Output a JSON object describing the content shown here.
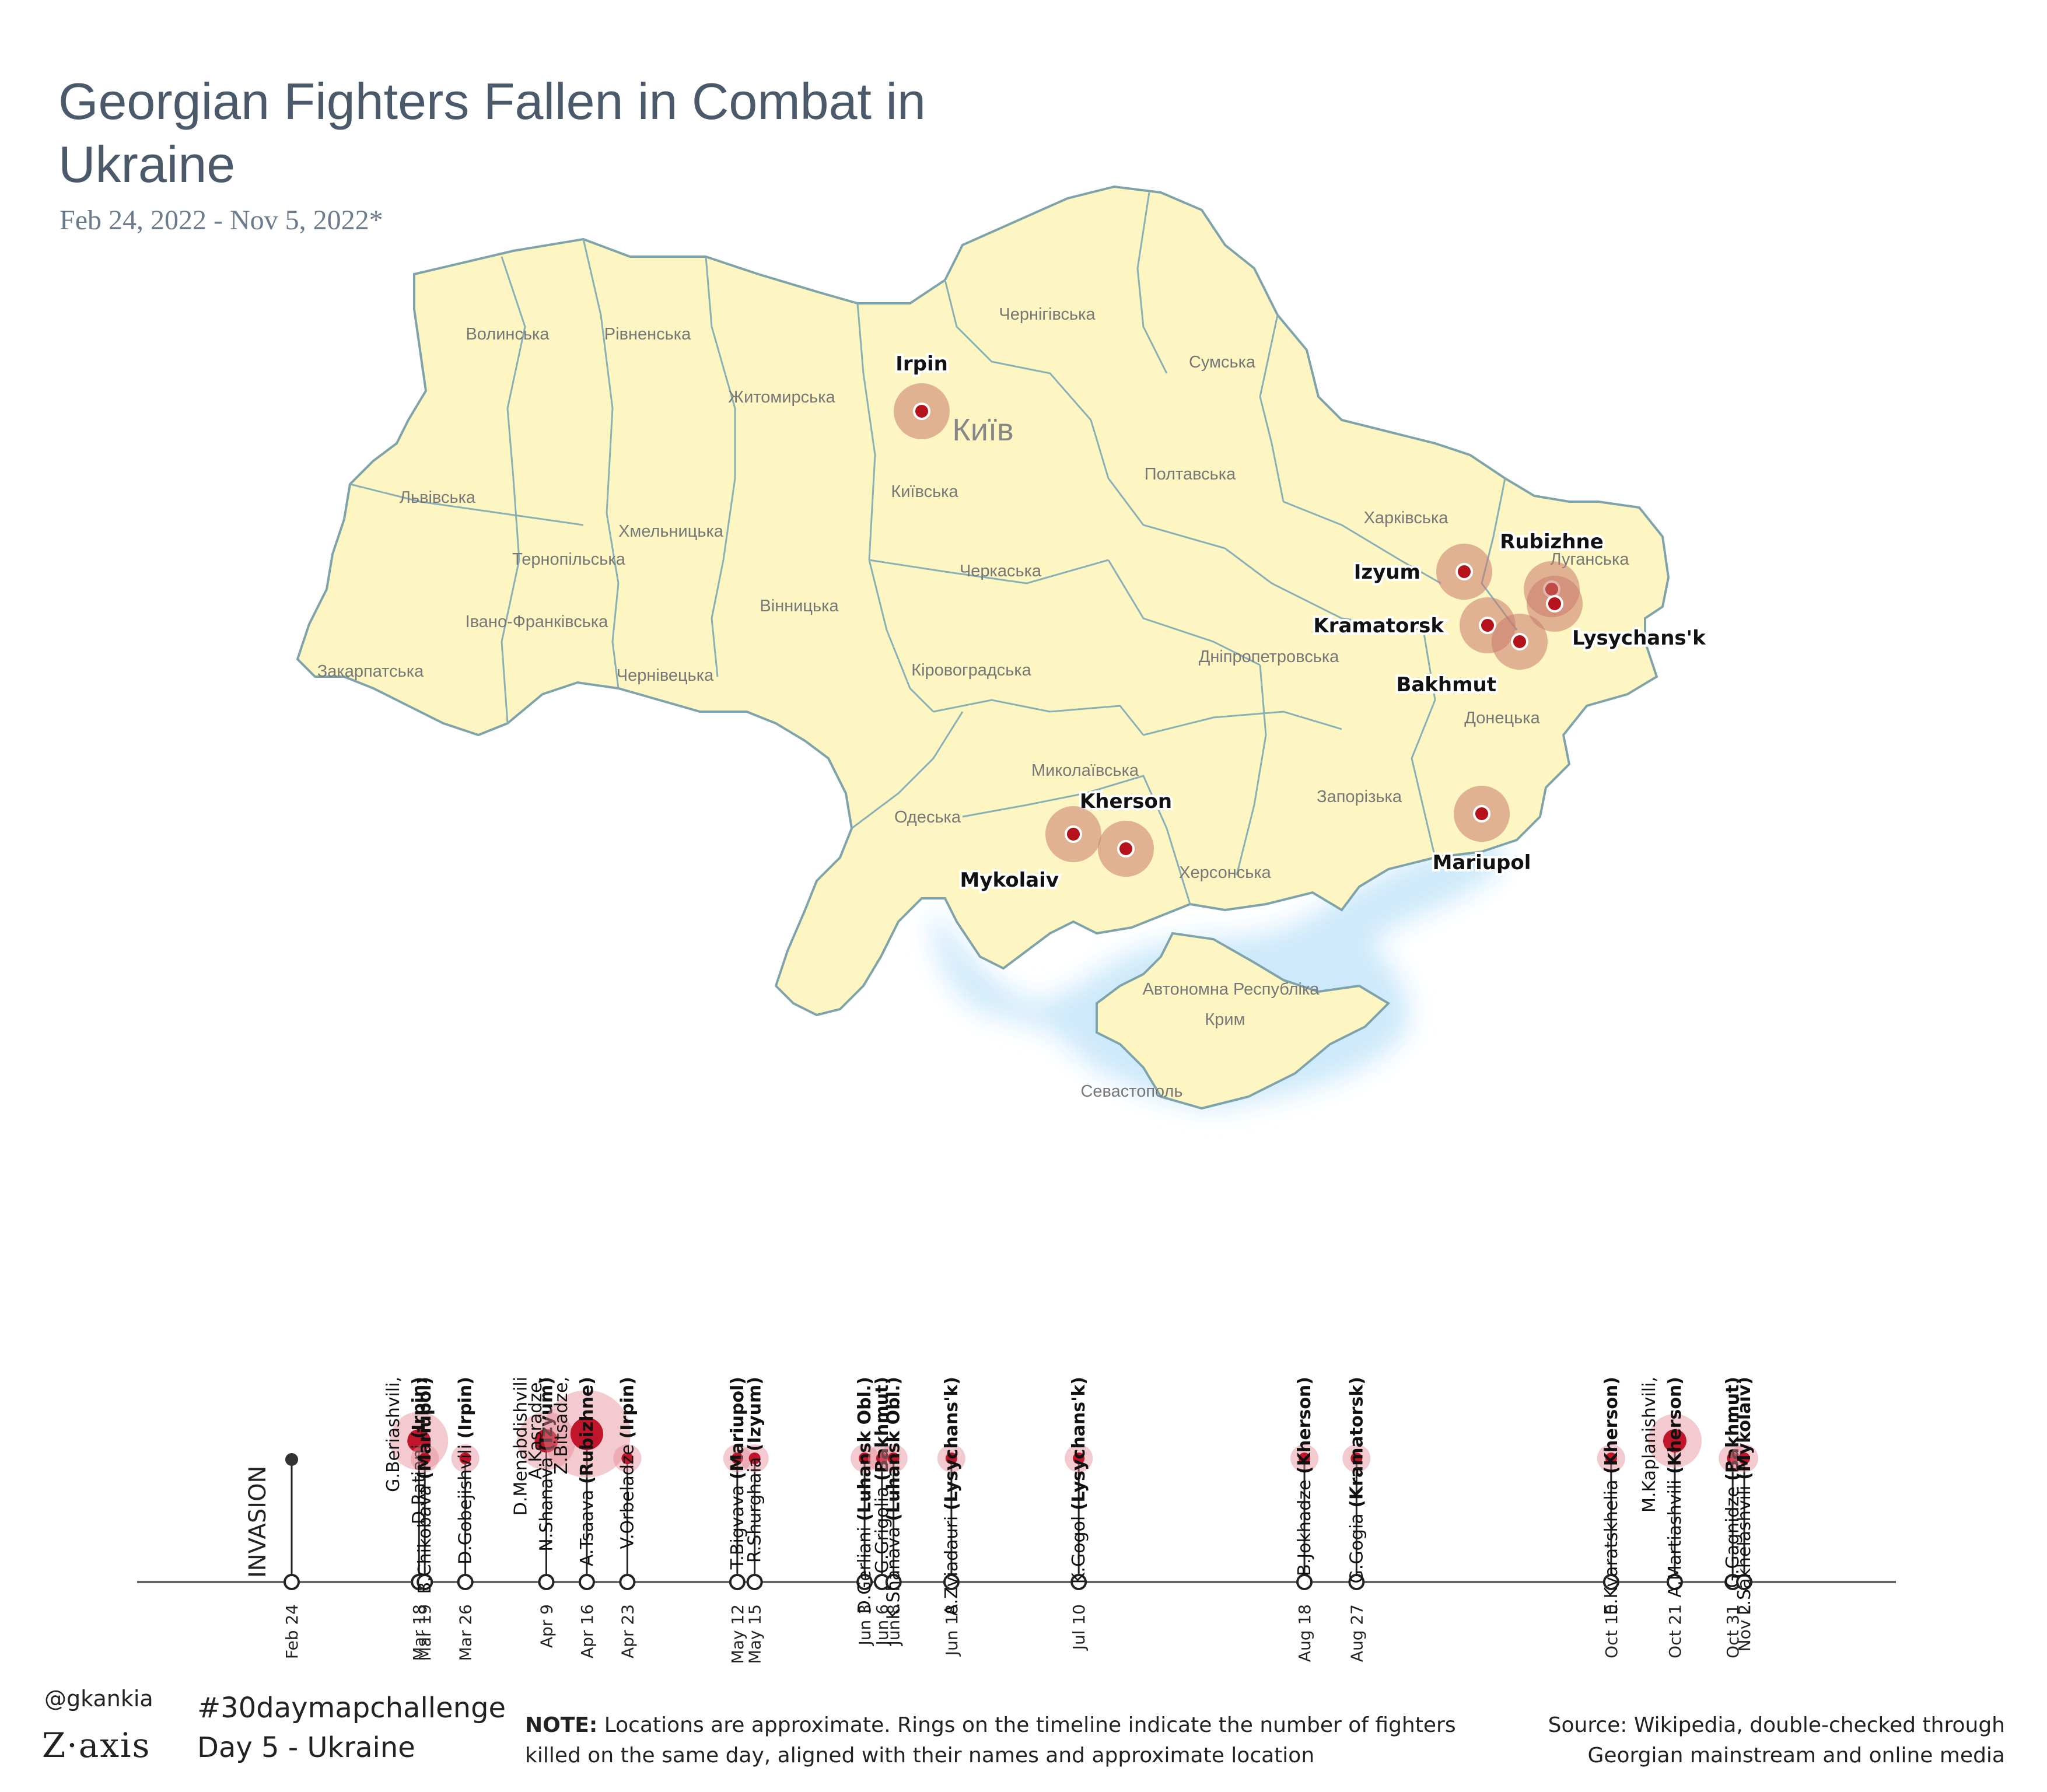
{
  "title": "Georgian Fighters Fallen in Combat in Ukraine",
  "subtitle": "Feb 24, 2022 - Nov 5, 2022*",
  "colors": {
    "land": "#fdf6c3",
    "border": "#6f9aa6",
    "sea_glow": "#bfe3f7",
    "dot": "#b5121b",
    "ring": "#c97a6a",
    "title": "#4a5a6a"
  },
  "oblasts": [
    {
      "name": "Волинська",
      "anchor": "volyn"
    },
    {
      "name": "Рівненська",
      "anchor": "rivne"
    },
    {
      "name": "Житомирська",
      "anchor": "zhytomyr"
    },
    {
      "name": "Чернігівська",
      "anchor": "chernihiv"
    },
    {
      "name": "Сумська",
      "anchor": "sumy"
    },
    {
      "name": "Київ",
      "anchor": "kyivcity"
    },
    {
      "name": "Київська",
      "anchor": "kyiv"
    },
    {
      "name": "Полтавська",
      "anchor": "poltava"
    },
    {
      "name": "Харківська",
      "anchor": "kharkiv"
    },
    {
      "name": "Луганська",
      "anchor": "luhansk"
    },
    {
      "name": "Львівська",
      "anchor": "lviv"
    },
    {
      "name": "Тернопільська",
      "anchor": "ternopil"
    },
    {
      "name": "Хмельницька",
      "anchor": "khmelnytskyi"
    },
    {
      "name": "Черкаська",
      "anchor": "cherkasy"
    },
    {
      "name": "Вінницька",
      "anchor": "vinnytsia"
    },
    {
      "name": "Івано-Франківська",
      "anchor": "ivanofrankivsk"
    },
    {
      "name": "Закарпатська",
      "anchor": "zakarpattia"
    },
    {
      "name": "Чернівецька",
      "anchor": "chernivtsi"
    },
    {
      "name": "Кіровоградська",
      "anchor": "kirovohrad"
    },
    {
      "name": "Дніпропетровська",
      "anchor": "dnipro"
    },
    {
      "name": "Донецька",
      "anchor": "donetsk"
    },
    {
      "name": "Миколаївська",
      "anchor": "mykolaiv"
    },
    {
      "name": "Одеська",
      "anchor": "odesa"
    },
    {
      "name": "Запорізька",
      "anchor": "zaporizhzhia"
    },
    {
      "name": "Херсонська",
      "anchor": "kherson"
    },
    {
      "name": "Автономна Республіка",
      "anchor": "crimea1"
    },
    {
      "name": "Крим",
      "anchor": "crimea2"
    },
    {
      "name": "Севастополь",
      "anchor": "sevastopol"
    }
  ],
  "map_points": [
    {
      "name": "Irpin",
      "fallen": 3
    },
    {
      "name": "Izyum",
      "fallen": 2
    },
    {
      "name": "Rubizhne",
      "fallen": 1
    },
    {
      "name": "Kramatorsk",
      "fallen": 1
    },
    {
      "name": "Lysychans'k",
      "fallen": 2
    },
    {
      "name": "Bakhmut",
      "fallen": 2
    },
    {
      "name": "Kherson",
      "fallen": 4
    },
    {
      "name": "Mykolaiv",
      "fallen": 1
    },
    {
      "name": "Mariupol",
      "fallen": 2
    }
  ],
  "timeline": {
    "invasion_label": "INVASION",
    "start": {
      "date": "Feb 24",
      "day": 0
    },
    "events": [
      {
        "date": "Mar 18",
        "day": 22,
        "count": 3,
        "names": [
          {
            "t": "G.Beriashvili,"
          },
          {
            "t": "D.Ratiani ",
            "p": "(Irpin)"
          }
        ]
      },
      {
        "date": "Mar 19",
        "day": 23,
        "count": 1,
        "names": [
          {
            "t": "B.Chikobava ",
            "p": "(Mariupol)"
          }
        ]
      },
      {
        "date": "Mar 26",
        "day": 30,
        "count": 1,
        "names": [
          {
            "t": "D.Gobejishvili ",
            "p": "(Irpin)"
          }
        ]
      },
      {
        "date": "Apr 9",
        "day": 44,
        "count": 3,
        "names": [
          {
            "t": "D.Menabdishvili"
          },
          {
            "t": "N.Shanava ",
            "p": "(Izyum)"
          }
        ]
      },
      {
        "date": "Apr 16",
        "day": 51,
        "count": 5,
        "names": [
          {
            "t": "A.Kasradze,"
          },
          {
            "t": "Z.Bitsadze,"
          },
          {
            "t": "A.Tsaava ",
            "p": "(Rubizhne)"
          }
        ]
      },
      {
        "date": "Apr 23",
        "day": 58,
        "count": 1,
        "names": [
          {
            "t": "V.Orbeladze ",
            "p": "(Irpin)"
          }
        ]
      },
      {
        "date": "May 12",
        "day": 77,
        "count": 1,
        "names": [
          {
            "t": "T.Bigvava ",
            "p": "(Mariupol)"
          }
        ]
      },
      {
        "date": "May 15",
        "day": 80,
        "count": 1,
        "names": [
          {
            "t": "R.Shurghaia ",
            "p": "(Izyum)"
          }
        ]
      },
      {
        "date": "Jun 3",
        "day": 99,
        "count": 1,
        "names": [
          {
            "t": "D.Gerliani ",
            "p": "(Luhansk Obl.)"
          }
        ]
      },
      {
        "date": "Jun 6",
        "day": 102,
        "count": 1,
        "names": [
          {
            "t": "G.Grigolia ",
            "p": "(Bakhmut)"
          }
        ]
      },
      {
        "date": "Jun 8",
        "day": 104,
        "count": 1,
        "names": [
          {
            "t": "K.Shanava ",
            "p": "(Luhansk Obl.)"
          }
        ]
      },
      {
        "date": "Jun 18",
        "day": 114,
        "count": 1,
        "names": [
          {
            "t": "A.Zviadauri ",
            "p": "(Lysychans'k)"
          }
        ]
      },
      {
        "date": "Jul 10",
        "day": 136,
        "count": 1,
        "names": [
          {
            "t": "K.Gogol ",
            "p": "(Lysychans'k)"
          }
        ]
      },
      {
        "date": "Aug 18",
        "day": 175,
        "count": 1,
        "names": [
          {
            "t": "B.Jokhadze ",
            "p": "(Kherson)"
          }
        ]
      },
      {
        "date": "Aug 27",
        "day": 184,
        "count": 1,
        "names": [
          {
            "t": "G.Gogia ",
            "p": "(Kramatorsk)"
          }
        ]
      },
      {
        "date": "Oct 10",
        "day": 228,
        "count": 1,
        "names": [
          {
            "t": "E.Kvaratskhelia ",
            "p": "(Kherson)"
          }
        ]
      },
      {
        "date": "Oct 21",
        "day": 239,
        "count": 2,
        "names": [
          {
            "t": "M.Kaplanishvili,"
          },
          {
            "t": "A.Martiashvili ",
            "p": "(Kherson)"
          }
        ]
      },
      {
        "date": "Oct 31",
        "day": 249,
        "count": 1,
        "names": [
          {
            "t": "G.Gagnidze ",
            "p": "(Bakhmut)"
          }
        ]
      },
      {
        "date": "Nov 2",
        "day": 251,
        "count": 1,
        "names": [
          {
            "t": "L.Sakhelashvili ",
            "p": "(Mykolaiv)"
          }
        ]
      }
    ]
  },
  "footer": {
    "handle": "@gkankia",
    "logo": "Z·axis",
    "hashtag": "#30daymapchallenge",
    "day": "Day 5 - Ukraine",
    "note_label": "NOTE:",
    "note": " Locations are approximate. Rings on the timeline indicate the number of fighters killed on the same day, aligned with their names and approximate location",
    "source": "Source: Wikipedia, double-checked through Georgian mainstream and online media"
  }
}
